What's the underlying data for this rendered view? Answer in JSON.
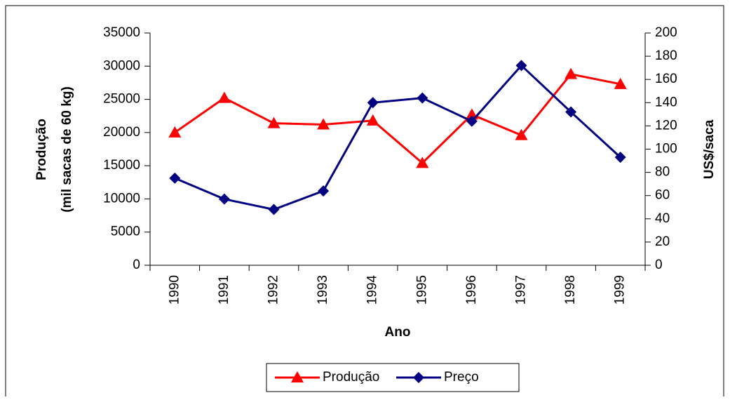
{
  "chart_data": {
    "type": "line",
    "x_label": "Ano",
    "y_label_lines": [
      "Produção",
      "(mil sacas de 60 kg)"
    ],
    "y2_label": "US$/saca",
    "categories": [
      "1990",
      "1991",
      "1992",
      "1993",
      "1994",
      "1995",
      "1996",
      "1997",
      "1998",
      "1999"
    ],
    "series": [
      {
        "name": "Produção",
        "color": "#ff0000",
        "marker": "triangle",
        "values": [
          20000,
          25200,
          21400,
          21200,
          21800,
          15400,
          22700,
          19600,
          28800,
          27300
        ]
      },
      {
        "name": "Preço",
        "color": "#000080",
        "marker": "diamond",
        "axis": "y2",
        "values": [
          75,
          57,
          48,
          64,
          140,
          144,
          124,
          172,
          132,
          93
        ]
      }
    ],
    "ylim": [
      0,
      35000
    ],
    "yticks": [
      0,
      5000,
      10000,
      15000,
      20000,
      25000,
      30000,
      35000
    ],
    "y2lim": [
      0,
      200
    ],
    "y2ticks": [
      0,
      20,
      40,
      60,
      80,
      100,
      120,
      140,
      160,
      180,
      200
    ],
    "legend": "bottom"
  }
}
